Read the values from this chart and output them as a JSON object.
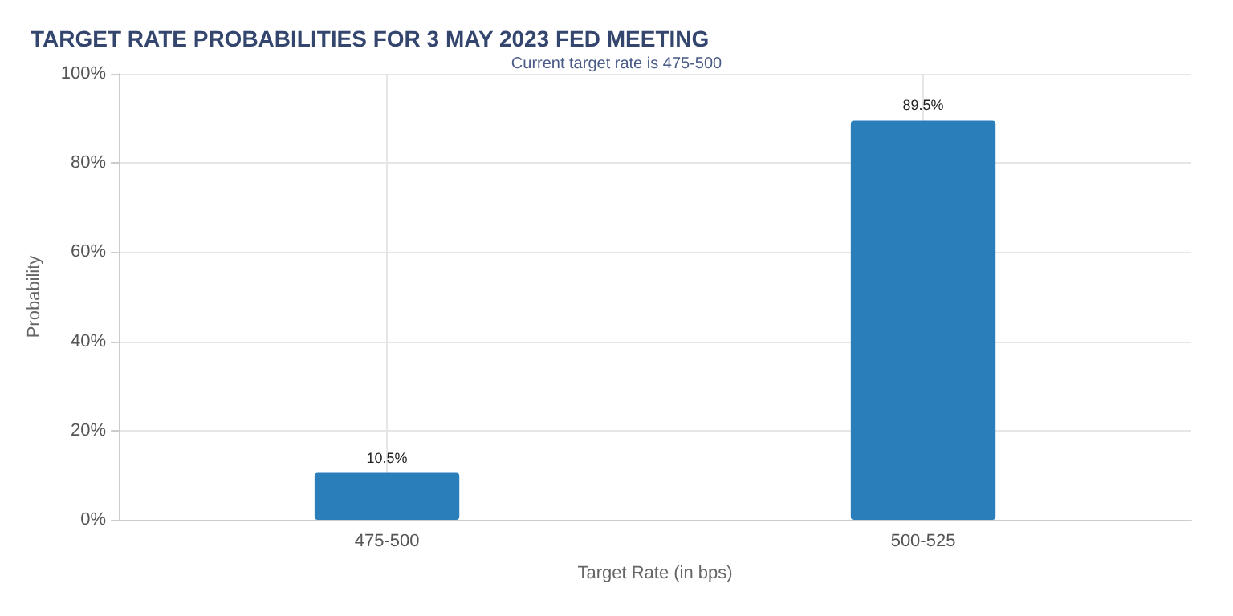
{
  "chart_data": {
    "type": "bar",
    "title": "TARGET RATE PROBABILITIES FOR 3 MAY 2023 FED MEETING",
    "subtitle": "Current target rate is 475-500",
    "xlabel": "Target Rate (in bps)",
    "ylabel": "Probability",
    "categories": [
      "475-500",
      "500-525"
    ],
    "values": [
      10.5,
      89.5
    ],
    "value_labels": [
      "10.5%",
      "89.5%"
    ],
    "color": "#2a7fba",
    "ylim": [
      0,
      100
    ],
    "yticks": [
      {
        "value": 0,
        "label": "0%"
      },
      {
        "value": 20,
        "label": "20%"
      },
      {
        "value": 40,
        "label": "40%"
      },
      {
        "value": 60,
        "label": "60%"
      },
      {
        "value": 80,
        "label": "80%"
      },
      {
        "value": 100,
        "label": "100%"
      }
    ],
    "grid": true
  }
}
